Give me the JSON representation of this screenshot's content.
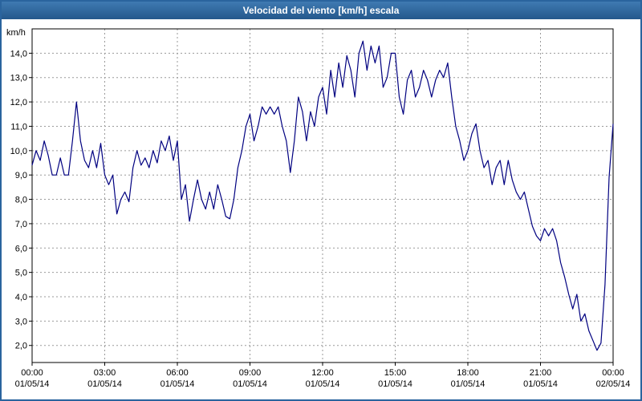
{
  "window": {
    "title": "Velocidad del viento [km/h] escala"
  },
  "colors": {
    "title_bar": "#2a649e",
    "border": "#2a649e",
    "line": "#000080",
    "grid": "#9a9a9a",
    "plot_border": "#000000",
    "background": "#ffffff",
    "title_text": "#ffffff",
    "tick_text": "#000000"
  },
  "chart_data": {
    "type": "line",
    "title": "Velocidad del viento [km/h] escala",
    "xlabel": "",
    "ylabel": "km/h",
    "ylim": [
      1.3,
      15.0
    ],
    "x_range_hours": [
      0,
      24
    ],
    "interval_minutes": 10,
    "grid": true,
    "legend_position": "none",
    "y_tick_values": [
      14,
      13,
      12,
      11,
      10,
      9,
      8,
      7,
      6,
      5,
      4,
      3,
      2
    ],
    "y_tick_labels": [
      "14,0",
      "13,0",
      "12,0",
      "11,0",
      "10,0",
      "9,0",
      "8,0",
      "7,0",
      "6,0",
      "5,0",
      "4,0",
      "3,0",
      "2,0"
    ],
    "x_ticks": [
      {
        "t": 0,
        "time": "00:00",
        "date": "01/05/14"
      },
      {
        "t": 3,
        "time": "03:00",
        "date": "01/05/14"
      },
      {
        "t": 6,
        "time": "06:00",
        "date": "01/05/14"
      },
      {
        "t": 9,
        "time": "09:00",
        "date": "01/05/14"
      },
      {
        "t": 12,
        "time": "12:00",
        "date": "01/05/14"
      },
      {
        "t": 15,
        "time": "15:00",
        "date": "01/05/14"
      },
      {
        "t": 18,
        "time": "18:00",
        "date": "01/05/14"
      },
      {
        "t": 21,
        "time": "21:00",
        "date": "01/05/14"
      },
      {
        "t": 24,
        "time": "00:00",
        "date": "02/05/14"
      }
    ],
    "series": [
      {
        "name": "Velocidad del viento",
        "values": [
          9.4,
          10.0,
          9.6,
          10.4,
          9.8,
          9.0,
          9.0,
          9.7,
          9.0,
          9.0,
          10.4,
          12.0,
          10.4,
          9.6,
          9.3,
          10.0,
          9.3,
          10.3,
          9.0,
          8.6,
          9.0,
          7.4,
          8.0,
          8.3,
          7.9,
          9.3,
          10.0,
          9.4,
          9.7,
          9.3,
          10.0,
          9.5,
          10.4,
          10.0,
          10.6,
          9.6,
          10.4,
          8.0,
          8.6,
          7.1,
          8.0,
          8.8,
          8.0,
          7.6,
          8.3,
          7.6,
          8.6,
          8.0,
          7.3,
          7.2,
          8.0,
          9.3,
          10.0,
          11.0,
          11.5,
          10.4,
          11.0,
          11.8,
          11.5,
          11.8,
          11.5,
          11.8,
          11.0,
          10.4,
          9.1,
          10.4,
          12.2,
          11.6,
          10.4,
          11.6,
          11.0,
          12.2,
          12.6,
          11.5,
          13.3,
          12.2,
          13.6,
          12.6,
          13.9,
          13.3,
          12.2,
          14.0,
          14.5,
          13.3,
          14.3,
          13.6,
          14.3,
          12.6,
          13.0,
          14.0,
          14.0,
          12.2,
          11.5,
          12.9,
          13.3,
          12.2,
          12.6,
          13.3,
          12.9,
          12.2,
          12.9,
          13.3,
          13.0,
          13.6,
          12.2,
          11.0,
          10.4,
          9.6,
          10.0,
          10.7,
          11.1,
          10.0,
          9.3,
          9.6,
          8.6,
          9.3,
          9.6,
          8.6,
          9.6,
          8.8,
          8.3,
          8.0,
          8.3,
          7.6,
          6.9,
          6.5,
          6.3,
          6.8,
          6.5,
          6.8,
          6.3,
          5.4,
          4.8,
          4.1,
          3.5,
          4.1,
          3.0,
          3.3,
          2.6,
          2.2,
          1.8,
          2.1,
          4.5,
          8.9,
          11.1
        ]
      }
    ]
  }
}
